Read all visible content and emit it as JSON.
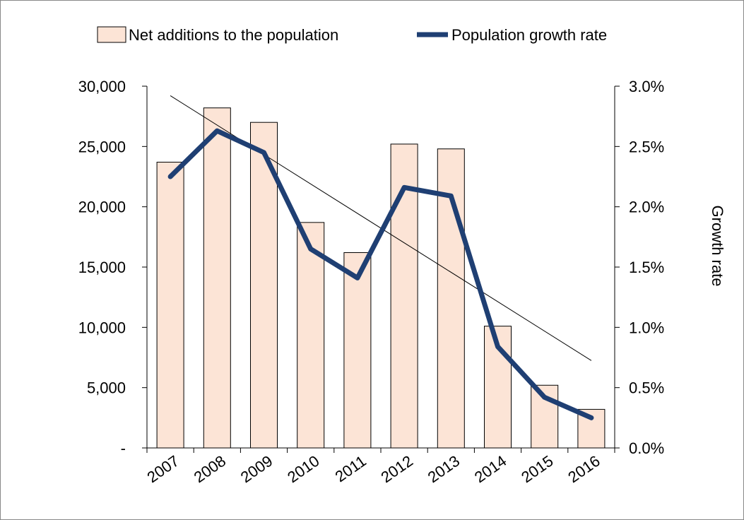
{
  "chart_data": {
    "type": "bar",
    "title": "",
    "categories": [
      "2007",
      "2008",
      "2009",
      "2010",
      "2011",
      "2012",
      "2013",
      "2014",
      "2015",
      "2016"
    ],
    "series": [
      {
        "name": "Net additions to the population",
        "type": "bar",
        "axis": "left",
        "values": [
          23700,
          28200,
          27000,
          18700,
          16200,
          25200,
          24800,
          10100,
          5200,
          3200
        ],
        "color": "#FCE4D6"
      },
      {
        "name": "Population growth rate",
        "type": "line",
        "axis": "right",
        "values": [
          2.25,
          2.63,
          2.45,
          1.65,
          1.41,
          2.16,
          2.09,
          0.84,
          0.42,
          0.25
        ],
        "color": "#1F3F73"
      }
    ],
    "trendline": {
      "series": "Net additions to the population",
      "type": "linear"
    },
    "ylim_left": [
      0,
      30000
    ],
    "ylim_right": [
      0,
      3.0
    ],
    "yticks_left": [
      "-",
      "5,000",
      "10,000",
      "15,000",
      "20,000",
      "25,000",
      "30,000"
    ],
    "yticks_right": [
      "0.0%",
      "0.5%",
      "1.0%",
      "1.5%",
      "2.0%",
      "2.5%",
      "3.0%"
    ],
    "xlabel": "",
    "ylabel_left": "",
    "ylabel_right": "Growth rate",
    "grid": false,
    "legend_position": "top"
  }
}
